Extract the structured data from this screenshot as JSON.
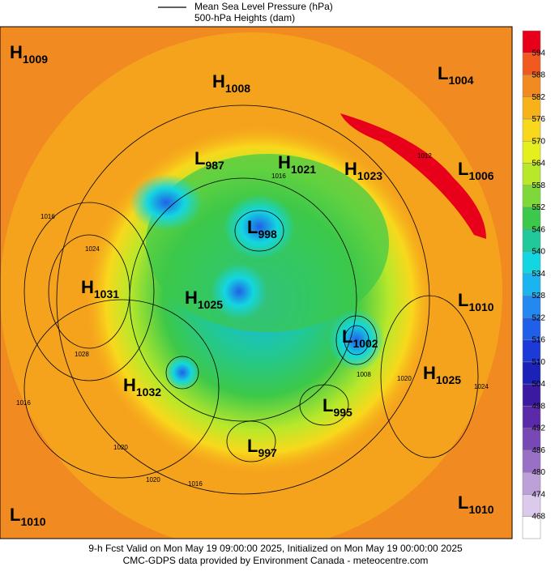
{
  "header": {
    "line_legend": "Mean Sea Level Pressure (hPa)",
    "fill_legend": "500-hPa Heights (dam)"
  },
  "centers": [
    {
      "kind": "H",
      "value": "1009"
    },
    {
      "kind": "H",
      "value": "1008"
    },
    {
      "kind": "L",
      "value": "1004"
    },
    {
      "kind": "L",
      "value": "987"
    },
    {
      "kind": "H",
      "value": "1021"
    },
    {
      "kind": "H",
      "value": "1023"
    },
    {
      "kind": "L",
      "value": "1006"
    },
    {
      "kind": "L",
      "value": "998"
    },
    {
      "kind": "H",
      "value": "1031"
    },
    {
      "kind": "H",
      "value": "1025"
    },
    {
      "kind": "L",
      "value": "1010"
    },
    {
      "kind": "L",
      "value": "1002"
    },
    {
      "kind": "H",
      "value": "1025"
    },
    {
      "kind": "H",
      "value": "1032"
    },
    {
      "kind": "L",
      "value": "995"
    },
    {
      "kind": "L",
      "value": "997"
    },
    {
      "kind": "L",
      "value": "1010"
    },
    {
      "kind": "L",
      "value": "1010"
    }
  ],
  "contour_labels": [
    "1016",
    "1024",
    "1028",
    "1020",
    "1016",
    "1024",
    "1020",
    "1016",
    "1012",
    "1008",
    "1016",
    "1020"
  ],
  "colorbar": {
    "ticks": [
      "594",
      "588",
      "582",
      "576",
      "570",
      "564",
      "558",
      "552",
      "546",
      "540",
      "534",
      "528",
      "522",
      "516",
      "510",
      "504",
      "498",
      "492",
      "486",
      "480",
      "474",
      "468"
    ],
    "colors": [
      "#e8001a",
      "#f05a1e",
      "#f28a22",
      "#f7b21a",
      "#f8d81c",
      "#e6ef1e",
      "#b9e82a",
      "#7fd83a",
      "#3cc84a",
      "#20c89a",
      "#14d6e0",
      "#1ab4f0",
      "#2488f0",
      "#2060e8",
      "#1c3ad8",
      "#1a22b8",
      "#3a1aa0",
      "#5a2aa8",
      "#7848b4",
      "#9a70c6",
      "#bea0d8",
      "#dccaec",
      "#ffffff"
    ]
  },
  "footer": {
    "line1": "9-h Fcst Valid on Mon May 19 09:00:00 2025, Initialized on Mon May 19 00:00:00 2025",
    "line2": "CMC-GDPS data provided by Environment Canada - meteocentre.com"
  }
}
